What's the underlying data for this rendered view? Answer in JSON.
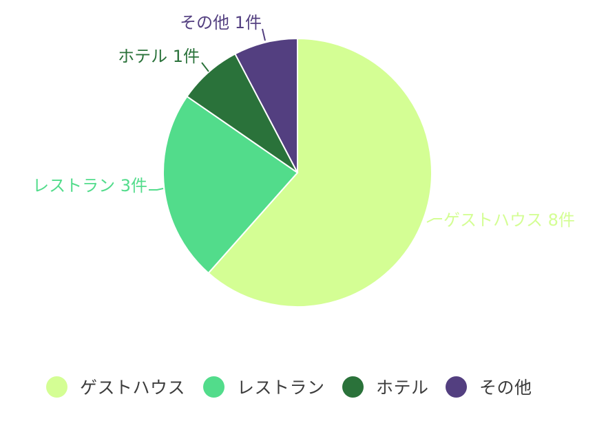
{
  "chart_data": {
    "type": "pie",
    "title": "",
    "categories": [
      "ゲストハウス",
      "レストラン",
      "ホテル",
      "その他"
    ],
    "values": [
      8,
      3,
      1,
      1
    ],
    "unit": "件",
    "colors": [
      "#d4fe94",
      "#52dc8b",
      "#2a723a",
      "#533f80"
    ],
    "labels": [
      "ゲストハウス 8件",
      "レストラン 3件",
      "ホテル 1件",
      "その他 1件"
    ],
    "start_angle_deg": 0,
    "direction": "clockwise",
    "legend_position": "bottom"
  },
  "legend": {
    "items": [
      {
        "label": "ゲストハウス",
        "color": "#d4fe94"
      },
      {
        "label": "レストラン",
        "color": "#52dc8b"
      },
      {
        "label": "ホテル",
        "color": "#2a723a"
      },
      {
        "label": "その他",
        "color": "#533f80"
      }
    ]
  }
}
